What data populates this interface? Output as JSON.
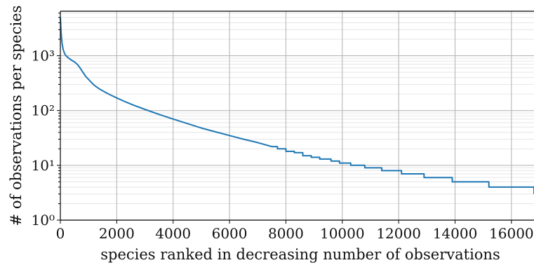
{
  "chart_data": {
    "type": "line",
    "xlabel": "species ranked in decreasing number of observations",
    "ylabel": "# of observations per species",
    "xlim": [
      0,
      16800
    ],
    "ylim": [
      1,
      6500
    ],
    "yscale": "log",
    "grid": true,
    "x_ticks": [
      0,
      2000,
      4000,
      6000,
      8000,
      10000,
      12000,
      14000,
      16000
    ],
    "y_ticks": [
      {
        "value": 1,
        "label": "10⁰"
      },
      {
        "value": 10,
        "label": "10¹"
      },
      {
        "value": 100,
        "label": "10²"
      },
      {
        "value": 1000,
        "label": "10³"
      }
    ],
    "series": [
      {
        "color": "#1f77b4",
        "x": [
          0,
          30,
          60,
          100,
          150,
          200,
          300,
          400,
          500,
          600,
          700,
          800,
          900,
          1000,
          1200,
          1400,
          1600,
          1800,
          2000,
          2300,
          2600,
          3000,
          3500,
          4000,
          4500,
          5000,
          5500,
          6000,
          6500,
          7000,
          7500,
          7700,
          8000,
          8300,
          8600,
          8900,
          9200,
          9600,
          9900,
          10300,
          10800,
          11400,
          12100,
          12900,
          13900,
          15200,
          16800
        ],
        "y": [
          5000,
          2500,
          1700,
          1300,
          1100,
          1000,
          900,
          830,
          770,
          700,
          600,
          500,
          420,
          370,
          290,
          245,
          215,
          190,
          170,
          145,
          125,
          105,
          85,
          70,
          58,
          48,
          41,
          35,
          30,
          26,
          22,
          20,
          18,
          17,
          15,
          14,
          13,
          12,
          11,
          10,
          9,
          8,
          7,
          6,
          5,
          4,
          3
        ]
      }
    ]
  }
}
